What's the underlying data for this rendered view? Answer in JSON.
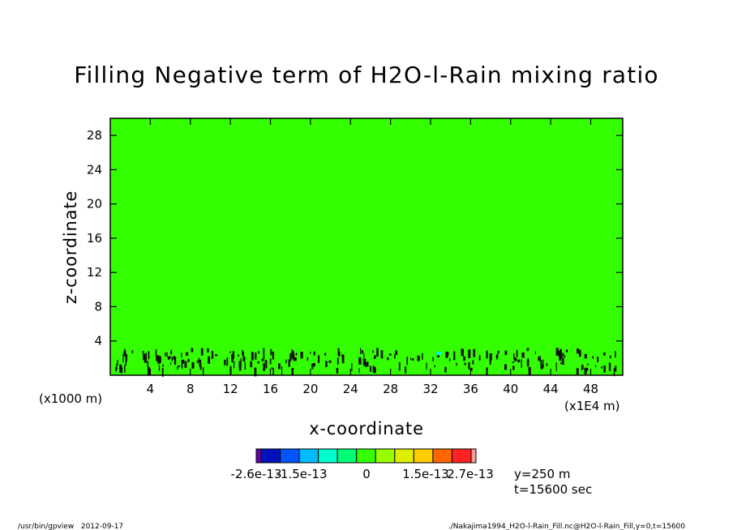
{
  "chart_data": {
    "type": "heatmap",
    "title": "Filling Negative term of H2O-l-Rain mixing ratio",
    "xlabel": "x-coordinate",
    "ylabel": "z-coordinate",
    "x_unit_left": "(x1000 m)",
    "x_unit_right": "(x1E4 m)",
    "xlim": [
      0,
      51.2
    ],
    "ylim": [
      0,
      30
    ],
    "xticks": [
      4,
      8,
      12,
      16,
      20,
      24,
      28,
      32,
      36,
      40,
      44,
      48
    ],
    "yticks": [
      4,
      8,
      12,
      16,
      20,
      24,
      28
    ],
    "fill_value": 0,
    "fill_color": "#33ff00",
    "colorbar": {
      "colors": [
        "#6600aa",
        "#0011bb",
        "#0055ff",
        "#00bbff",
        "#00ffcc",
        "#00ff77",
        "#33ff00",
        "#99ff00",
        "#ddee00",
        "#ffcc00",
        "#ff6600",
        "#ff2222",
        "#ff9999"
      ],
      "labels": [
        "-2.6e-13",
        "-1.5e-13",
        "0",
        "1.5e-13",
        "2.7e-13"
      ]
    },
    "annotations": [
      "y=250 m",
      "t=15600 sec"
    ]
  },
  "footer": {
    "left": "/usr/bin/gpview   2012-09-17",
    "right": "./Nakajima1994_H2O-l-Rain_Fill.nc@H2O-l-Rain_Fill,y=0,t=15600"
  }
}
